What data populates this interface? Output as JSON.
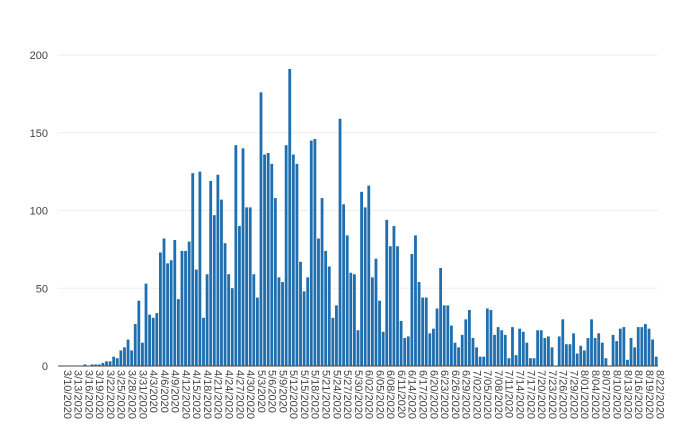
{
  "chart_data": {
    "type": "bar",
    "title": "",
    "xlabel": "",
    "ylabel": "",
    "bar_color": "#1f6eb0",
    "grid": true,
    "legend": "none",
    "ylim": [
      0,
      200
    ],
    "yticks": [
      0,
      50,
      100,
      150,
      200
    ],
    "x_tick_labels": [
      "3/10/2020",
      "3/13/2020",
      "3/16/2020",
      "3/19/2020",
      "3/22/2020",
      "3/25/2020",
      "3/28/2020",
      "3/31/2020",
      "4/3/2020",
      "4/6/2020",
      "4/9/2020",
      "4/12/2020",
      "4/15/2020",
      "4/18/2020",
      "4/21/2020",
      "4/24/2020",
      "4/27/2020",
      "4/30/2020",
      "5/3/2020",
      "5/6/2020",
      "5/9/2020",
      "5/12/2020",
      "5/15/2020",
      "5/18/2020",
      "5/21/2020",
      "5/24/2020",
      "5/27/2020",
      "5/30/2020",
      "6/2/2020",
      "6/5/2020",
      "6/8/2020",
      "6/11/2020",
      "6/14/2020",
      "6/17/2020",
      "6/20/2020",
      "6/23/2020",
      "6/26/2020",
      "6/29/2020",
      "7/2/2020",
      "7/5/2020",
      "7/8/2020",
      "7/11/2020",
      "7/14/2020",
      "7/17/2020",
      "7/20/2020",
      "7/23/2020",
      "7/26/2020",
      "7/29/2020",
      "8/1/2020",
      "8/4/2020",
      "8/7/2020",
      "8/10/2020",
      "8/13/2020",
      "8/16/2020",
      "8/19/2020",
      "8/22/2020"
    ],
    "x_tick_display": [
      "3/10/2020",
      "3/13/2020",
      "3/16/2020",
      "3/19/2020",
      "3/22/2020",
      "3/25/2020",
      "3/28/2020",
      "3/31/2020",
      "4/3/2020",
      "4/6/2020",
      "4/9/2020",
      "4/12/2020",
      "4/15/2020",
      "4/18/2020",
      "4/21/2020",
      "4/24/2020",
      "4/27/2020",
      "4/30/2020",
      "5/3/2020",
      "5/6/2020",
      "5/9/2020",
      "5/12/2020",
      "5/15/2020",
      "5/18/2020",
      "5/21/2020",
      "5/24/2020",
      "5/27/2020",
      "5/30/2020",
      "6/02/2020",
      "6/05/2020",
      "6/08/2020",
      "6/11/2020",
      "6/14/2020",
      "6/17/2020",
      "6/20/2020",
      "6/23/2020",
      "6/26/2020",
      "6/29/2020",
      "7/02/2020",
      "7/05/2020",
      "7/08/2020",
      "7/11/2020",
      "7/14/2020",
      "7/17/2020",
      "7/20/2020",
      "7/23/2020",
      "7/26/2020",
      "7/29/2020",
      "8/01/2020",
      "8/04/2020",
      "8/07/2020",
      "8/10/2020",
      "8/13/2020",
      "8/16/2020",
      "8/19/2020",
      "8/22/2020"
    ],
    "categories": [
      "3/10/2020",
      "3/11/2020",
      "3/12/2020",
      "3/13/2020",
      "3/14/2020",
      "3/15/2020",
      "3/16/2020",
      "3/17/2020",
      "3/18/2020",
      "3/19/2020",
      "3/20/2020",
      "3/21/2020",
      "3/22/2020",
      "3/23/2020",
      "3/24/2020",
      "3/25/2020",
      "3/26/2020",
      "3/27/2020",
      "3/28/2020",
      "3/29/2020",
      "3/30/2020",
      "3/31/2020",
      "4/1/2020",
      "4/2/2020",
      "4/3/2020",
      "4/4/2020",
      "4/5/2020",
      "4/6/2020",
      "4/7/2020",
      "4/8/2020",
      "4/9/2020",
      "4/10/2020",
      "4/11/2020",
      "4/12/2020",
      "4/13/2020",
      "4/14/2020",
      "4/15/2020",
      "4/16/2020",
      "4/17/2020",
      "4/18/2020",
      "4/19/2020",
      "4/20/2020",
      "4/21/2020",
      "4/22/2020",
      "4/23/2020",
      "4/24/2020",
      "4/25/2020",
      "4/26/2020",
      "4/27/2020",
      "4/28/2020",
      "4/29/2020",
      "4/30/2020",
      "5/1/2020",
      "5/2/2020",
      "5/3/2020",
      "5/4/2020",
      "5/5/2020",
      "5/6/2020",
      "5/7/2020",
      "5/8/2020",
      "5/9/2020",
      "5/10/2020",
      "5/11/2020",
      "5/12/2020",
      "5/13/2020",
      "5/14/2020",
      "5/15/2020",
      "5/16/2020",
      "5/17/2020",
      "5/18/2020",
      "5/19/2020",
      "5/20/2020",
      "5/21/2020",
      "5/22/2020",
      "5/23/2020",
      "5/24/2020",
      "5/25/2020",
      "5/26/2020",
      "5/27/2020",
      "5/28/2020",
      "5/29/2020",
      "5/30/2020",
      "5/31/2020",
      "6/1/2020",
      "6/2/2020",
      "6/3/2020",
      "6/4/2020",
      "6/5/2020",
      "6/6/2020",
      "6/7/2020",
      "6/8/2020",
      "6/9/2020",
      "6/10/2020",
      "6/11/2020",
      "6/12/2020",
      "6/13/2020",
      "6/14/2020",
      "6/15/2020",
      "6/16/2020",
      "6/17/2020",
      "6/18/2020",
      "6/19/2020",
      "6/20/2020",
      "6/21/2020",
      "6/22/2020",
      "6/23/2020",
      "6/24/2020",
      "6/25/2020",
      "6/26/2020",
      "6/27/2020",
      "6/28/2020",
      "6/29/2020",
      "6/30/2020",
      "7/1/2020",
      "7/2/2020",
      "7/3/2020",
      "7/4/2020",
      "7/5/2020",
      "7/6/2020",
      "7/7/2020",
      "7/8/2020",
      "7/9/2020",
      "7/10/2020",
      "7/11/2020",
      "7/12/2020",
      "7/13/2020",
      "7/14/2020",
      "7/15/2020",
      "7/16/2020",
      "7/17/2020",
      "7/18/2020",
      "7/19/2020",
      "7/20/2020",
      "7/21/2020",
      "7/22/2020",
      "7/23/2020",
      "7/24/2020",
      "7/25/2020",
      "7/26/2020",
      "7/27/2020",
      "7/28/2020",
      "7/29/2020",
      "7/30/2020",
      "7/31/2020",
      "8/1/2020",
      "8/2/2020",
      "8/3/2020",
      "8/4/2020",
      "8/5/2020",
      "8/6/2020",
      "8/7/2020",
      "8/8/2020",
      "8/9/2020",
      "8/10/2020",
      "8/11/2020",
      "8/12/2020",
      "8/13/2020",
      "8/14/2020",
      "8/15/2020",
      "8/16/2020",
      "8/17/2020",
      "8/18/2020",
      "8/19/2020",
      "8/20/2020",
      "8/21/2020",
      "8/22/2020",
      "8/23/2020"
    ],
    "values": [
      0,
      0,
      0,
      0,
      0,
      0,
      0,
      1,
      0,
      1,
      1,
      1,
      2,
      3,
      3,
      6,
      5,
      10,
      12,
      17,
      10,
      27,
      42,
      15,
      53,
      33,
      31,
      34,
      73,
      82,
      66,
      68,
      81,
      43,
      74,
      74,
      80,
      124,
      62,
      125,
      31,
      59,
      119,
      97,
      123,
      107,
      79,
      59,
      50,
      142,
      90,
      140,
      102,
      102,
      59,
      44,
      176,
      136,
      137,
      130,
      108,
      57,
      54,
      142,
      191,
      136,
      130,
      67,
      48,
      57,
      145,
      146,
      82,
      108,
      74,
      64,
      31,
      39,
      159,
      104,
      84,
      60,
      59,
      23,
      112,
      102,
      116,
      57,
      69,
      42,
      22,
      94,
      77,
      90,
      77,
      29,
      18,
      19,
      72,
      84,
      54,
      44,
      44,
      21,
      24,
      37,
      63,
      39,
      39,
      26,
      15,
      12,
      20,
      30,
      36,
      18,
      12,
      6,
      6,
      37,
      36,
      20,
      25,
      23,
      20,
      5,
      25,
      7,
      24,
      22,
      15,
      5,
      5,
      23,
      23,
      18,
      19,
      12,
      0,
      19,
      30,
      14,
      14,
      21,
      8,
      13,
      10,
      18,
      30,
      18,
      21,
      15,
      5,
      0,
      20,
      16,
      24,
      25,
      4,
      18,
      12,
      25,
      25,
      27,
      24,
      17,
      6
    ]
  }
}
